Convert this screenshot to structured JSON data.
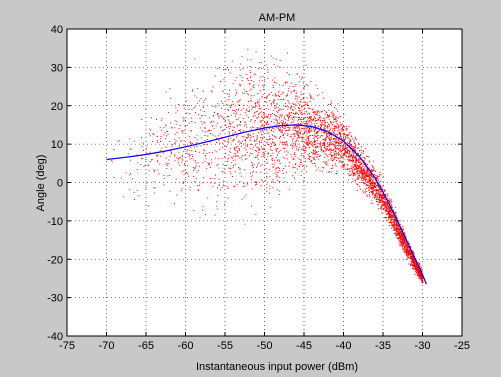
{
  "chart_data": {
    "type": "scatter",
    "title": "AM-PM",
    "xlabel": "Instantaneous input power (dBm)",
    "ylabel": "Angle (deg)",
    "xlim": [
      -75,
      -25
    ],
    "ylim": [
      -40,
      40
    ],
    "xticks": [
      -75,
      -70,
      -65,
      -60,
      -55,
      -50,
      -45,
      -40,
      -35,
      -30,
      -25
    ],
    "yticks": [
      -40,
      -30,
      -20,
      -10,
      0,
      10,
      20,
      30,
      40
    ],
    "xtick_labels": [
      "-75",
      "-70",
      "-65",
      "-60",
      "-55",
      "-50",
      "-45",
      "-40",
      "-35",
      "-30",
      "-25"
    ],
    "ytick_labels": [
      "-40",
      "-30",
      "-20",
      "-10",
      "0",
      "10",
      "20",
      "30",
      "40"
    ],
    "grid": true,
    "background": "#c8c8c8",
    "plot_background": "#ffffff",
    "series": [
      {
        "marker_color": "#ff0000",
        "kind": "scatter-cloud",
        "envelope": [
          {
            "x": -70,
            "y_center": 6,
            "spread": 10
          },
          {
            "x": -65,
            "y_center": 7,
            "spread": 12
          },
          {
            "x": -60,
            "y_center": 9.5,
            "spread": 16
          },
          {
            "x": -55,
            "y_center": 12,
            "spread": 20
          },
          {
            "x": -50,
            "y_center": 14,
            "spread": 18
          },
          {
            "x": -45,
            "y_center": 15,
            "spread": 12
          },
          {
            "x": -40,
            "y_center": 10,
            "spread": 7
          },
          {
            "x": -35,
            "y_center": -4,
            "spread": 4
          },
          {
            "x": -32,
            "y_center": -17,
            "spread": 3
          },
          {
            "x": -30,
            "y_center": -25,
            "spread": 2
          }
        ]
      },
      {
        "line_color": "#0000ff",
        "kind": "fit-line",
        "x": [
          -70,
          -67.5,
          -65,
          -62.5,
          -60,
          -57.5,
          -55,
          -52.5,
          -50,
          -48,
          -46,
          -44,
          -42,
          -40,
          -38,
          -36,
          -35,
          -34,
          -33,
          -32,
          -31,
          -30,
          -29.5
        ],
        "y": [
          6,
          6.6,
          7.3,
          8.2,
          9.3,
          10.5,
          11.8,
          13.1,
          14.2,
          14.8,
          15.0,
          14.6,
          13.3,
          10.8,
          6.8,
          1.2,
          -2.5,
          -6.5,
          -10.8,
          -15.2,
          -19.6,
          -24.0,
          -26.5
        ]
      }
    ]
  }
}
